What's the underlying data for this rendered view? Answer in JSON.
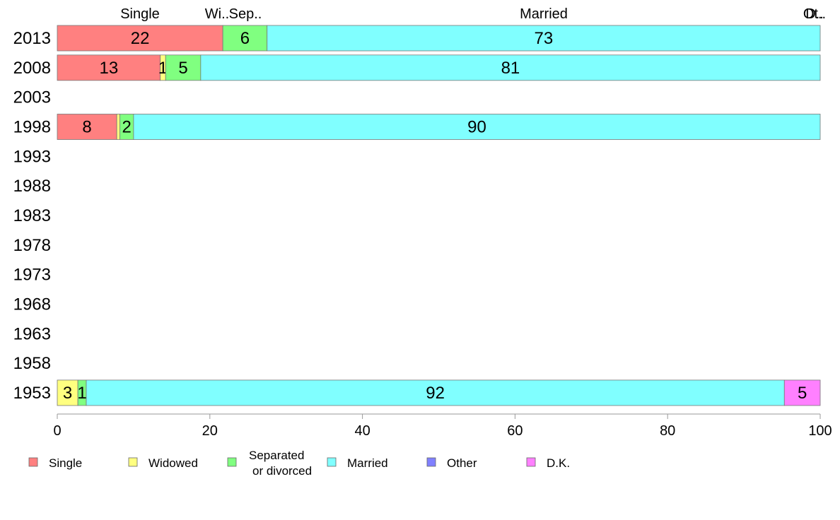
{
  "chart_data": {
    "type": "bar",
    "orientation": "horizontal",
    "stacked": true,
    "title": "",
    "xlabel": "",
    "ylabel": "",
    "xlim": [
      0,
      100
    ],
    "x_ticks": [
      "0",
      "20",
      "40",
      "60",
      "80",
      "100"
    ],
    "categories": [
      "2013",
      "2008",
      "2003",
      "1998",
      "1993",
      "1988",
      "1983",
      "1978",
      "1973",
      "1968",
      "1963",
      "1958",
      "1953"
    ],
    "top_labels": [
      "Single",
      "Wi..",
      "Sep..",
      "Married",
      "Ot..",
      "D.."
    ],
    "series": [
      {
        "name": "Single",
        "color": "#FF8080",
        "values": [
          21.7,
          13.5,
          null,
          7.8,
          null,
          null,
          null,
          null,
          null,
          null,
          null,
          null,
          0
        ]
      },
      {
        "name": "Widowed",
        "color": "#FFFF80",
        "values": [
          0,
          0.7,
          null,
          0.4,
          null,
          null,
          null,
          null,
          null,
          null,
          null,
          null,
          2.7
        ]
      },
      {
        "name": "Separated\nor divorced",
        "color": "#80FF80",
        "values": [
          5.8,
          4.6,
          null,
          1.8,
          null,
          null,
          null,
          null,
          null,
          null,
          null,
          null,
          1.1
        ]
      },
      {
        "name": "Married",
        "color": "#80FFFF",
        "values": [
          72.5,
          81.2,
          null,
          90.0,
          null,
          null,
          null,
          null,
          null,
          null,
          null,
          null,
          91.5
        ]
      },
      {
        "name": "Other",
        "color": "#8080FF",
        "values": [
          0,
          0,
          null,
          0,
          null,
          null,
          null,
          null,
          null,
          null,
          null,
          null,
          0
        ]
      },
      {
        "name": "D.K.",
        "color": "#FF80FF",
        "values": [
          0,
          0,
          null,
          0,
          null,
          null,
          null,
          null,
          null,
          null,
          null,
          null,
          4.7
        ]
      }
    ],
    "data_labels": {
      "2013": [
        "22",
        "",
        "6",
        "73",
        "",
        ""
      ],
      "2008": [
        "13",
        "1",
        "5",
        "81",
        "",
        ""
      ],
      "1998": [
        "8",
        "",
        "2",
        "90",
        "",
        ""
      ],
      "1953": [
        "",
        "3",
        "1",
        "92",
        "",
        "5"
      ]
    },
    "grid": false,
    "legend": "bottom"
  }
}
